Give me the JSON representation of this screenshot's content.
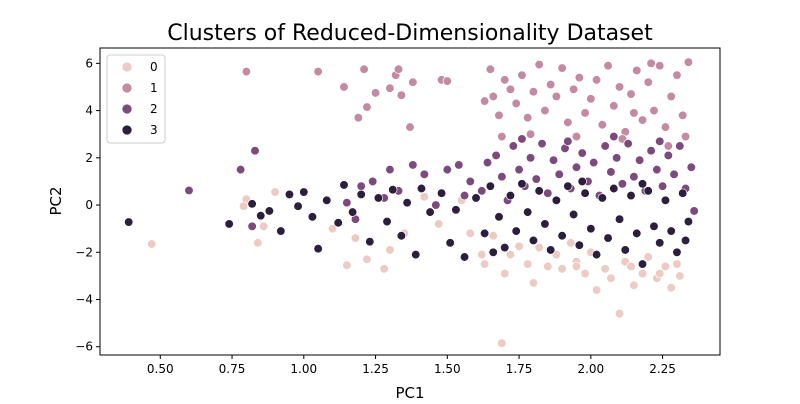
{
  "chart_data": {
    "type": "scatter",
    "title": "Clusters of Reduced-Dimensionality Dataset",
    "xlabel": "PC1",
    "ylabel": "PC2",
    "xlim": [
      0.29,
      2.45
    ],
    "ylim": [
      -6.35,
      6.65
    ],
    "xticks": [
      "0.50",
      "0.75",
      "1.00",
      "1.25",
      "1.50",
      "1.75",
      "2.00",
      "2.25"
    ],
    "yticks": [
      "−6",
      "−4",
      "−2",
      "0",
      "2",
      "4",
      "6"
    ],
    "grid": false,
    "legend": {
      "placement": "top-left",
      "title": ""
    },
    "series": [
      {
        "name": "0",
        "color": "#eccbc4",
        "points": [
          [
            0.47,
            -1.65
          ],
          [
            0.8,
            0.25
          ],
          [
            0.79,
            -0.05
          ],
          [
            0.84,
            -1.6
          ],
          [
            0.86,
            -0.9
          ],
          [
            0.9,
            0.55
          ],
          [
            1.1,
            -1.0
          ],
          [
            1.15,
            -2.55
          ],
          [
            1.18,
            -1.4
          ],
          [
            1.22,
            -2.3
          ],
          [
            1.28,
            -2.7
          ],
          [
            1.3,
            -1.9
          ],
          [
            1.35,
            -1.2
          ],
          [
            1.42,
            0.35
          ],
          [
            1.47,
            -0.8
          ],
          [
            1.55,
            0.2
          ],
          [
            1.58,
            -1.2
          ],
          [
            1.63,
            -2.5
          ],
          [
            1.66,
            -1.3
          ],
          [
            1.7,
            -2.9
          ],
          [
            1.72,
            -2.1
          ],
          [
            1.75,
            -1.75
          ],
          [
            1.78,
            -2.5
          ],
          [
            1.8,
            -3.3
          ],
          [
            1.82,
            -1.8
          ],
          [
            1.85,
            -2.6
          ],
          [
            1.88,
            -2.1
          ],
          [
            1.9,
            -2.7
          ],
          [
            1.93,
            -1.6
          ],
          [
            1.95,
            -2.4
          ],
          [
            1.98,
            -2.9
          ],
          [
            2.0,
            -2.0
          ],
          [
            2.02,
            -3.6
          ],
          [
            2.05,
            -2.7
          ],
          [
            2.07,
            -3.1
          ],
          [
            2.1,
            -4.6
          ],
          [
            2.12,
            -2.4
          ],
          [
            2.15,
            -3.4
          ],
          [
            2.18,
            -2.9
          ],
          [
            2.2,
            -2.2
          ],
          [
            2.23,
            -3.1
          ],
          [
            2.26,
            -2.6
          ],
          [
            2.28,
            -3.5
          ],
          [
            2.3,
            -2.5
          ],
          [
            2.31,
            -3.0
          ],
          [
            1.69,
            -5.85
          ],
          [
            1.95,
            -2.6
          ],
          [
            2.14,
            -2.6
          ],
          [
            2.24,
            -2.9
          ],
          [
            1.62,
            -2.1
          ]
        ]
      },
      {
        "name": "1",
        "color": "#c48aa3",
        "points": [
          [
            0.8,
            5.65
          ],
          [
            1.05,
            5.65
          ],
          [
            1.14,
            5.0
          ],
          [
            1.19,
            3.7
          ],
          [
            1.21,
            5.75
          ],
          [
            1.22,
            4.15
          ],
          [
            1.25,
            4.75
          ],
          [
            1.3,
            4.95
          ],
          [
            1.32,
            5.5
          ],
          [
            1.33,
            5.75
          ],
          [
            1.34,
            4.65
          ],
          [
            1.37,
            3.3
          ],
          [
            1.38,
            5.2
          ],
          [
            1.48,
            5.3
          ],
          [
            1.5,
            5.25
          ],
          [
            1.63,
            4.4
          ],
          [
            1.65,
            5.75
          ],
          [
            1.66,
            4.6
          ],
          [
            1.68,
            3.8
          ],
          [
            1.7,
            5.3
          ],
          [
            1.72,
            4.9
          ],
          [
            1.74,
            4.3
          ],
          [
            1.76,
            5.5
          ],
          [
            1.78,
            3.7
          ],
          [
            1.8,
            4.8
          ],
          [
            1.82,
            5.95
          ],
          [
            1.84,
            4.0
          ],
          [
            1.86,
            5.1
          ],
          [
            1.88,
            4.6
          ],
          [
            1.9,
            5.8
          ],
          [
            1.92,
            3.5
          ],
          [
            1.94,
            4.9
          ],
          [
            1.96,
            5.4
          ],
          [
            1.98,
            3.9
          ],
          [
            2.0,
            4.5
          ],
          [
            2.02,
            5.3
          ],
          [
            2.04,
            3.4
          ],
          [
            2.06,
            5.9
          ],
          [
            2.08,
            4.2
          ],
          [
            2.1,
            5.0
          ],
          [
            2.12,
            3.1
          ],
          [
            2.14,
            4.7
          ],
          [
            2.16,
            5.7
          ],
          [
            2.18,
            3.6
          ],
          [
            2.2,
            5.2
          ],
          [
            2.22,
            4.0
          ],
          [
            2.24,
            5.9
          ],
          [
            2.26,
            3.3
          ],
          [
            2.28,
            4.6
          ],
          [
            2.3,
            5.5
          ],
          [
            2.32,
            3.8
          ],
          [
            2.34,
            6.05
          ],
          [
            2.33,
            2.9
          ],
          [
            2.27,
            2.5
          ],
          [
            2.11,
            2.8
          ],
          [
            1.95,
            2.9
          ],
          [
            1.79,
            3.0
          ],
          [
            1.69,
            2.9
          ],
          [
            2.21,
            6.0
          ],
          [
            2.15,
            3.9
          ]
        ]
      },
      {
        "name": "2",
        "color": "#7c4a7c",
        "points": [
          [
            0.6,
            0.62
          ],
          [
            0.78,
            1.5
          ],
          [
            0.83,
            2.3
          ],
          [
            0.82,
            -0.9
          ],
          [
            1.15,
            0.1
          ],
          [
            1.2,
            0.8
          ],
          [
            1.24,
            1.0
          ],
          [
            1.3,
            1.5
          ],
          [
            1.33,
            0.6
          ],
          [
            1.38,
            1.7
          ],
          [
            1.42,
            1.3
          ],
          [
            1.46,
            0.0
          ],
          [
            1.5,
            1.5
          ],
          [
            1.54,
            1.7
          ],
          [
            1.58,
            1.0
          ],
          [
            1.62,
            0.6
          ],
          [
            1.64,
            1.8
          ],
          [
            1.67,
            2.1
          ],
          [
            1.69,
            1.2
          ],
          [
            1.71,
            0.2
          ],
          [
            1.73,
            2.5
          ],
          [
            1.75,
            1.5
          ],
          [
            1.77,
            0.8
          ],
          [
            1.79,
            2.0
          ],
          [
            1.81,
            1.1
          ],
          [
            1.83,
            2.6
          ],
          [
            1.85,
            0.5
          ],
          [
            1.87,
            1.9
          ],
          [
            1.89,
            1.3
          ],
          [
            1.91,
            2.4
          ],
          [
            1.93,
            0.7
          ],
          [
            1.95,
            1.6
          ],
          [
            1.97,
            2.2
          ],
          [
            1.99,
            1.0
          ],
          [
            2.01,
            1.8
          ],
          [
            2.03,
            0.4
          ],
          [
            2.05,
            2.5
          ],
          [
            2.07,
            1.4
          ],
          [
            2.09,
            2.0
          ],
          [
            2.11,
            0.9
          ],
          [
            2.13,
            2.6
          ],
          [
            2.15,
            1.2
          ],
          [
            2.17,
            1.9
          ],
          [
            2.19,
            0.6
          ],
          [
            2.21,
            2.3
          ],
          [
            2.23,
            1.5
          ],
          [
            2.25,
            0.8
          ],
          [
            2.27,
            2.1
          ],
          [
            2.29,
            1.3
          ],
          [
            2.31,
            2.5
          ],
          [
            2.33,
            0.7
          ],
          [
            2.35,
            1.6
          ],
          [
            2.36,
            -0.25
          ],
          [
            2.24,
            2.7
          ],
          [
            2.08,
            2.9
          ],
          [
            1.92,
            2.7
          ],
          [
            1.76,
            2.8
          ],
          [
            1.18,
            -0.6
          ],
          [
            1.28,
            0.3
          ],
          [
            1.56,
            0.4
          ]
        ]
      },
      {
        "name": "3",
        "color": "#2d1e3e",
        "points": [
          [
            0.39,
            -0.72
          ],
          [
            0.74,
            -0.8
          ],
          [
            0.82,
            0.05
          ],
          [
            0.85,
            -0.45
          ],
          [
            0.88,
            -0.25
          ],
          [
            0.92,
            -1.1
          ],
          [
            0.95,
            0.45
          ],
          [
            0.98,
            -0.05
          ],
          [
            1.0,
            0.55
          ],
          [
            1.03,
            -0.5
          ],
          [
            1.05,
            -1.85
          ],
          [
            1.08,
            0.2
          ],
          [
            1.12,
            -0.75
          ],
          [
            1.14,
            0.85
          ],
          [
            1.17,
            -0.3
          ],
          [
            1.2,
            0.45
          ],
          [
            1.23,
            -1.55
          ],
          [
            1.26,
            0.3
          ],
          [
            1.29,
            -0.7
          ],
          [
            1.31,
            0.65
          ],
          [
            1.34,
            -1.3
          ],
          [
            1.36,
            0.1
          ],
          [
            1.39,
            -2.1
          ],
          [
            1.41,
            0.7
          ],
          [
            1.44,
            -0.3
          ],
          [
            1.48,
            0.5
          ],
          [
            1.51,
            -1.6
          ],
          [
            1.53,
            -0.2
          ],
          [
            1.56,
            -2.2
          ],
          [
            1.6,
            0.3
          ],
          [
            1.63,
            -1.2
          ],
          [
            1.65,
            0.8
          ],
          [
            1.68,
            -0.5
          ],
          [
            1.7,
            -1.8
          ],
          [
            1.72,
            0.4
          ],
          [
            1.74,
            -1.1
          ],
          [
            1.76,
            0.9
          ],
          [
            1.78,
            -0.3
          ],
          [
            1.8,
            -1.5
          ],
          [
            1.82,
            0.6
          ],
          [
            1.84,
            -0.8
          ],
          [
            1.86,
            -1.9
          ],
          [
            1.88,
            0.2
          ],
          [
            1.9,
            -1.3
          ],
          [
            1.92,
            0.8
          ],
          [
            1.94,
            -0.4
          ],
          [
            1.96,
            -1.7
          ],
          [
            1.98,
            0.5
          ],
          [
            2.0,
            -1.0
          ],
          [
            2.02,
            -2.1
          ],
          [
            2.04,
            0.3
          ],
          [
            2.06,
            -1.4
          ],
          [
            2.08,
            0.7
          ],
          [
            2.1,
            -0.6
          ],
          [
            2.12,
            -1.9
          ],
          [
            2.14,
            0.4
          ],
          [
            2.16,
            -1.2
          ],
          [
            2.18,
            -2.5
          ],
          [
            2.2,
            0.6
          ],
          [
            2.22,
            -0.9
          ],
          [
            2.24,
            -1.6
          ],
          [
            2.26,
            0.2
          ],
          [
            2.28,
            -1.1
          ],
          [
            2.3,
            -2.0
          ],
          [
            2.32,
            0.5
          ],
          [
            2.34,
            -0.7
          ],
          [
            2.33,
            -1.5
          ],
          [
            2.18,
            0.9
          ],
          [
            1.97,
            1.0
          ],
          [
            1.66,
            -2.0
          ]
        ]
      }
    ]
  }
}
